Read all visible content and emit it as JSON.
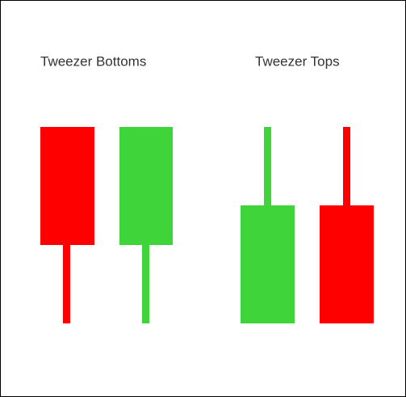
{
  "labels": {
    "bottoms": "Tweezer Bottoms",
    "tops": "Tweezer Tops"
  }
}
